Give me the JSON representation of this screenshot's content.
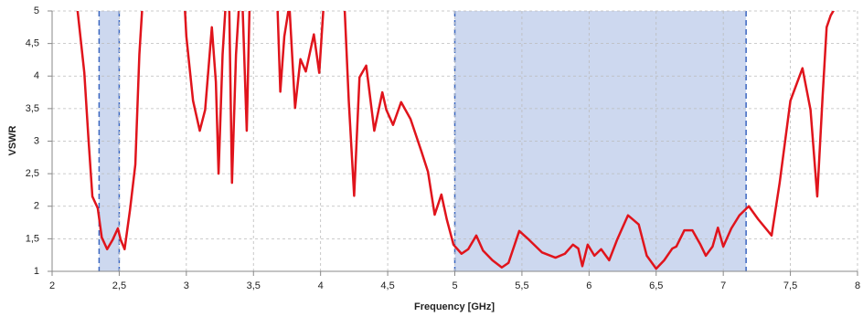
{
  "chart_data": {
    "type": "line",
    "x_label": "Frequency [GHz]",
    "y_label": "VSWR",
    "xlim": [
      2,
      8
    ],
    "ylim": [
      1,
      5
    ],
    "xticks": [
      2,
      {
        "value": 2.5,
        "label": "2,5"
      },
      3,
      {
        "value": 3.5,
        "label": "3,5"
      },
      4,
      {
        "value": 4.5,
        "label": "4,5"
      },
      5,
      {
        "value": 5.5,
        "label": "5,5"
      },
      6,
      {
        "value": 6.5,
        "label": "6,5"
      },
      7,
      {
        "value": 7.5,
        "label": "7,5"
      },
      8
    ],
    "yticks": [
      1,
      {
        "value": 1.5,
        "label": "1,5"
      },
      2,
      {
        "value": 2.5,
        "label": "2,5"
      },
      3,
      {
        "value": 3.5,
        "label": "3,5"
      },
      4,
      {
        "value": 4.5,
        "label": "4,5"
      },
      5
    ],
    "grid": true,
    "bands": [
      [
        2.35,
        2.5
      ],
      [
        5,
        7.17
      ]
    ],
    "band_color": "#cdd8ef",
    "band_edge_color": "#3a66c0",
    "series": [
      {
        "color": "#e0141c",
        "x": [
          2.19,
          2.24,
          2.27,
          2.3,
          2.34,
          2.37,
          2.41,
          2.45,
          2.49,
          2.51,
          2.54,
          2.58,
          2.62,
          2.65,
          2.67,
          null,
          2.99,
          3.0,
          3.05,
          3.1,
          3.14,
          3.19,
          3.22,
          3.24,
          3.27,
          3.29,
          null,
          3.32,
          3.34,
          3.37,
          3.39,
          null,
          3.42,
          3.45,
          3.47,
          null,
          3.68,
          3.7,
          3.73,
          3.76,
          null,
          3.77,
          3.81,
          3.85,
          3.89,
          3.95,
          3.99,
          4.02,
          null,
          4.18,
          4.21,
          4.25,
          4.29,
          4.34,
          4.4,
          4.46,
          4.49,
          4.54,
          4.6,
          4.67,
          4.75,
          4.8,
          4.85,
          4.9,
          4.94,
          4.99,
          5.05,
          5.1,
          5.16,
          5.21,
          5.28,
          5.35,
          5.4,
          5.48,
          5.55,
          5.65,
          5.75,
          5.82,
          5.88,
          5.92,
          5.95,
          5.99,
          6.04,
          6.09,
          6.15,
          6.21,
          6.29,
          6.37,
          6.43,
          6.5,
          6.56,
          6.62,
          6.65,
          6.71,
          6.77,
          6.83,
          6.87,
          6.92,
          6.96,
          7.0,
          7.06,
          7.12,
          7.19,
          7.26,
          7.36,
          7.42,
          7.5,
          7.59,
          7.65,
          7.7,
          7.74,
          7.77,
          7.8,
          7.82
        ],
        "values": [
          5,
          4.05,
          3.06,
          2.15,
          1.97,
          1.52,
          1.34,
          1.48,
          1.66,
          1.49,
          1.34,
          1.94,
          2.64,
          4.33,
          5,
          null,
          5,
          4.61,
          3.62,
          3.16,
          3.48,
          4.75,
          3.91,
          2.5,
          4.33,
          5,
          null,
          5,
          2.36,
          4.33,
          5,
          null,
          5,
          3.16,
          5,
          null,
          5,
          3.76,
          4.61,
          5,
          null,
          5,
          3.51,
          4.26,
          4.07,
          4.64,
          4.05,
          5,
          null,
          5,
          3.62,
          2.16,
          3.98,
          4.16,
          3.16,
          3.75,
          3.48,
          3.25,
          3.6,
          3.34,
          2.85,
          2.53,
          1.87,
          2.18,
          1.8,
          1.41,
          1.27,
          1.34,
          1.55,
          1.32,
          1.17,
          1.06,
          1.13,
          1.62,
          1.49,
          1.29,
          1.21,
          1.27,
          1.41,
          1.35,
          1.08,
          1.41,
          1.24,
          1.34,
          1.17,
          1.49,
          1.86,
          1.72,
          1.24,
          1.04,
          1.17,
          1.35,
          1.38,
          1.63,
          1.63,
          1.41,
          1.24,
          1.38,
          1.67,
          1.38,
          1.66,
          1.86,
          2.0,
          1.8,
          1.55,
          2.36,
          3.62,
          4.12,
          3.48,
          2.15,
          3.69,
          4.75,
          4.93,
          5
        ]
      }
    ]
  }
}
